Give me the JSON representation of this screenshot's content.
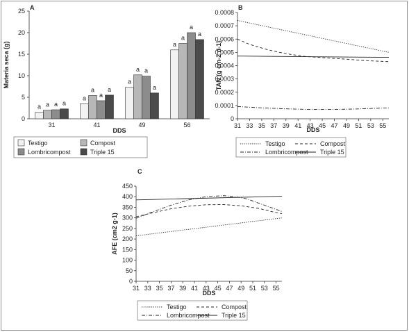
{
  "chart_data": [
    {
      "panel": "A",
      "type": "bar",
      "xlabel": "DDS",
      "ylabel": "Materia seca (g)",
      "ylim": [
        0,
        25
      ],
      "yticks": [
        0,
        5,
        10,
        15,
        20,
        25
      ],
      "categories": [
        "31",
        "41",
        "49",
        "56"
      ],
      "series": [
        {
          "name": "Testigo",
          "color": "#f2f2f2",
          "values": [
            1.5,
            3.5,
            7.3,
            16.0
          ]
        },
        {
          "name": "Compost",
          "color": "#b7b7b7",
          "values": [
            2.0,
            5.4,
            10.2,
            17.5
          ]
        },
        {
          "name": "Lombricompost",
          "color": "#8c8c8c",
          "values": [
            2.1,
            4.2,
            9.9,
            20.0
          ]
        },
        {
          "name": "Triple 15",
          "color": "#4a4a4a",
          "values": [
            2.3,
            5.5,
            6.0,
            18.4
          ]
        }
      ],
      "significance": [
        [
          "a",
          "a",
          "a",
          "a"
        ],
        [
          "a",
          "a",
          "a",
          "a"
        ],
        [
          "a",
          "a",
          "a",
          "a"
        ],
        [
          "a",
          "a",
          "a",
          "a"
        ]
      ],
      "legend_placement": "bottom",
      "grid": false
    },
    {
      "panel": "B",
      "type": "line",
      "xlabel": "DDS",
      "ylabel": "TAN  (g cm-2 d-1)",
      "xticks": [
        31,
        33,
        35,
        37,
        39,
        41,
        43,
        45,
        47,
        49,
        51,
        53,
        55
      ],
      "xlim": [
        31,
        56
      ],
      "ylim": [
        0,
        0.0008
      ],
      "yticks": [
        "0",
        "0.0001",
        "0.0002",
        "0.0003",
        "0.0004",
        "0.0005",
        "0.0006",
        "0.0007",
        "0.0008"
      ],
      "series": [
        {
          "name": "Testigo",
          "style": "dotted",
          "x": [
            31,
            56
          ],
          "y": [
            0.00074,
            0.0005
          ]
        },
        {
          "name": "Compost",
          "style": "dashed",
          "x": [
            31,
            33,
            36,
            39,
            42,
            45,
            48,
            51,
            53,
            56
          ],
          "y": [
            0.0006,
            0.00056,
            0.00052,
            0.00049,
            0.00047,
            0.00046,
            0.000452,
            0.000442,
            0.000436,
            0.00043
          ]
        },
        {
          "name": "Lombricompost",
          "style": "dashdot",
          "x": [
            31,
            35,
            39,
            43,
            47,
            51,
            56
          ],
          "y": [
            9.2e-05,
            8.2e-05,
            7.5e-05,
            7e-05,
            7e-05,
            7.4e-05,
            8.2e-05
          ]
        },
        {
          "name": "Triple 15",
          "style": "solid",
          "x": [
            31,
            56
          ],
          "y": [
            0.000472,
            0.000462
          ]
        }
      ],
      "legend_placement": "bottom",
      "grid": false
    },
    {
      "panel": "C",
      "type": "line",
      "xlabel": "DDS",
      "ylabel": "AFE (cm2 g-1)",
      "xticks": [
        31,
        33,
        35,
        37,
        39,
        41,
        43,
        45,
        47,
        49,
        51,
        53,
        55
      ],
      "xlim": [
        31,
        56
      ],
      "ylim": [
        0,
        450
      ],
      "yticks": [
        0,
        50,
        100,
        150,
        200,
        250,
        300,
        350,
        400,
        450
      ],
      "series": [
        {
          "name": "Testigo",
          "style": "dotted",
          "x": [
            31,
            56
          ],
          "y": [
            215,
            300
          ]
        },
        {
          "name": "Compost",
          "style": "dashed",
          "x": [
            31,
            34,
            37,
            40,
            43,
            46,
            49,
            52,
            55,
            56
          ],
          "y": [
            305,
            325,
            343,
            355,
            362,
            363,
            357,
            345,
            325,
            320
          ]
        },
        {
          "name": "Lombricompost",
          "style": "dashdot",
          "x": [
            31,
            34,
            37,
            40,
            43,
            46,
            48,
            50,
            52,
            54,
            56
          ],
          "y": [
            298,
            330,
            360,
            385,
            400,
            405,
            400,
            390,
            370,
            350,
            330
          ]
        },
        {
          "name": "Triple 15",
          "style": "solid",
          "x": [
            31,
            56
          ],
          "y": [
            385,
            402
          ]
        }
      ],
      "legend_placement": "bottom",
      "grid": false
    }
  ]
}
